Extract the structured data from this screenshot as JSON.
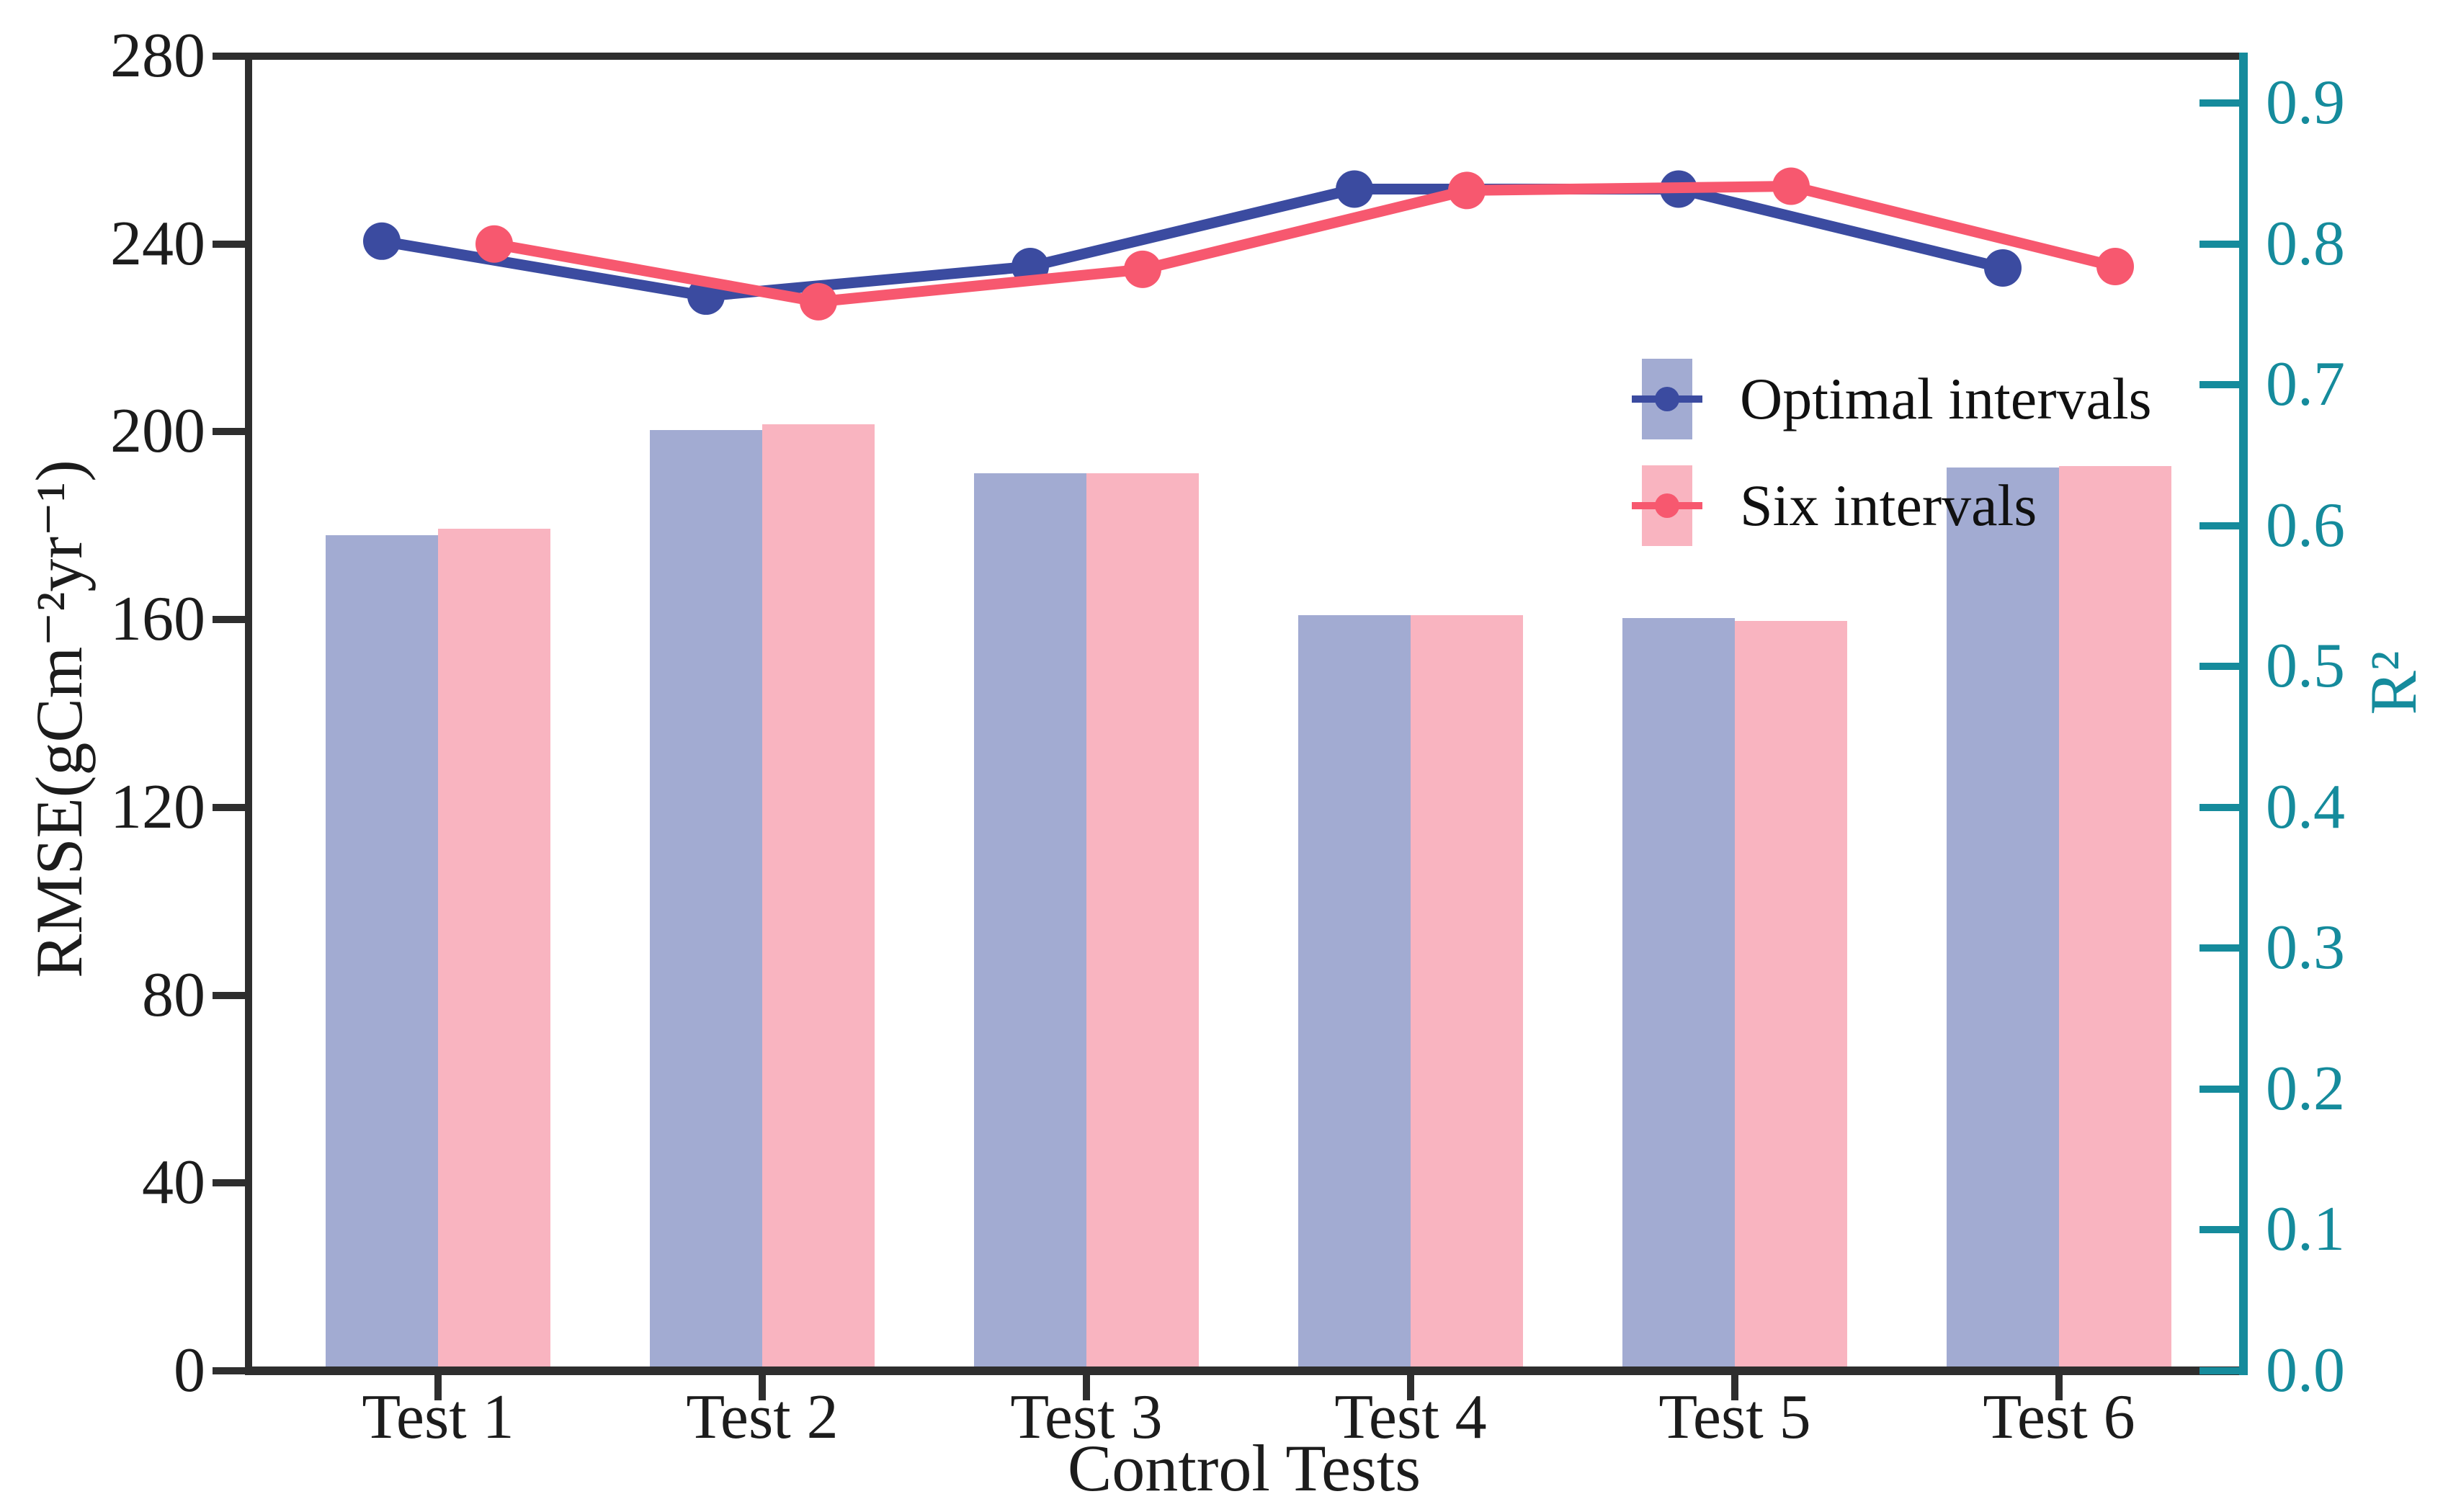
{
  "figure": {
    "background": "#ffffff",
    "axis_color": "#2e2e2e",
    "right_axis_color": "#158b9c"
  },
  "chart_data": {
    "type": "bar+line",
    "categories": [
      "Test 1",
      "Test 2",
      "Test 3",
      "Test 4",
      "Test 5",
      "Test 6"
    ],
    "bar_series": [
      {
        "name": "Optimal intervals",
        "axis": "left",
        "color": "#a2abd2",
        "values": [
          178.0,
          200.3,
          191.2,
          160.9,
          160.3,
          192.4
        ]
      },
      {
        "name": "Six intervals",
        "axis": "left",
        "color": "#f9b4c0",
        "values": [
          179.4,
          201.6,
          191.2,
          161.0,
          159.7,
          192.7
        ]
      }
    ],
    "line_series": [
      {
        "name": "Optimal intervals",
        "axis": "right",
        "color": "#3b4ba0",
        "values": [
          0.802,
          0.763,
          0.784,
          0.839,
          0.839,
          0.783
        ]
      },
      {
        "name": "Six intervals",
        "axis": "right",
        "color": "#f7586f",
        "values": [
          0.8,
          0.759,
          0.782,
          0.838,
          0.841,
          0.784
        ]
      }
    ],
    "title": "",
    "xlabel": "Control Tests",
    "ylabel_left": "RMSE(gCm⁻²yr⁻¹)",
    "ylabel_right": "R²",
    "left_axis": {
      "range": [
        0,
        280
      ],
      "ticks": [
        "280",
        "240",
        "200",
        "160",
        "120",
        "80",
        "40",
        "0"
      ]
    },
    "right_axis": {
      "range_top_shown": 0.9,
      "range_top_axis": 0.9333,
      "ticks": [
        "0.9",
        "0.8",
        "0.7",
        "0.6",
        "0.5",
        "0.4",
        "0.3",
        "0.2",
        "0.1",
        "0.0"
      ]
    },
    "grid": false,
    "legend": {
      "position": "upper-right-inside",
      "entries": [
        {
          "label": "Optimal intervals",
          "swatch_color": "#a2abd2",
          "marker_color": "#3b4ba0"
        },
        {
          "label": "Six intervals",
          "swatch_color": "#f9b4c0",
          "marker_color": "#f7586f"
        }
      ]
    }
  }
}
